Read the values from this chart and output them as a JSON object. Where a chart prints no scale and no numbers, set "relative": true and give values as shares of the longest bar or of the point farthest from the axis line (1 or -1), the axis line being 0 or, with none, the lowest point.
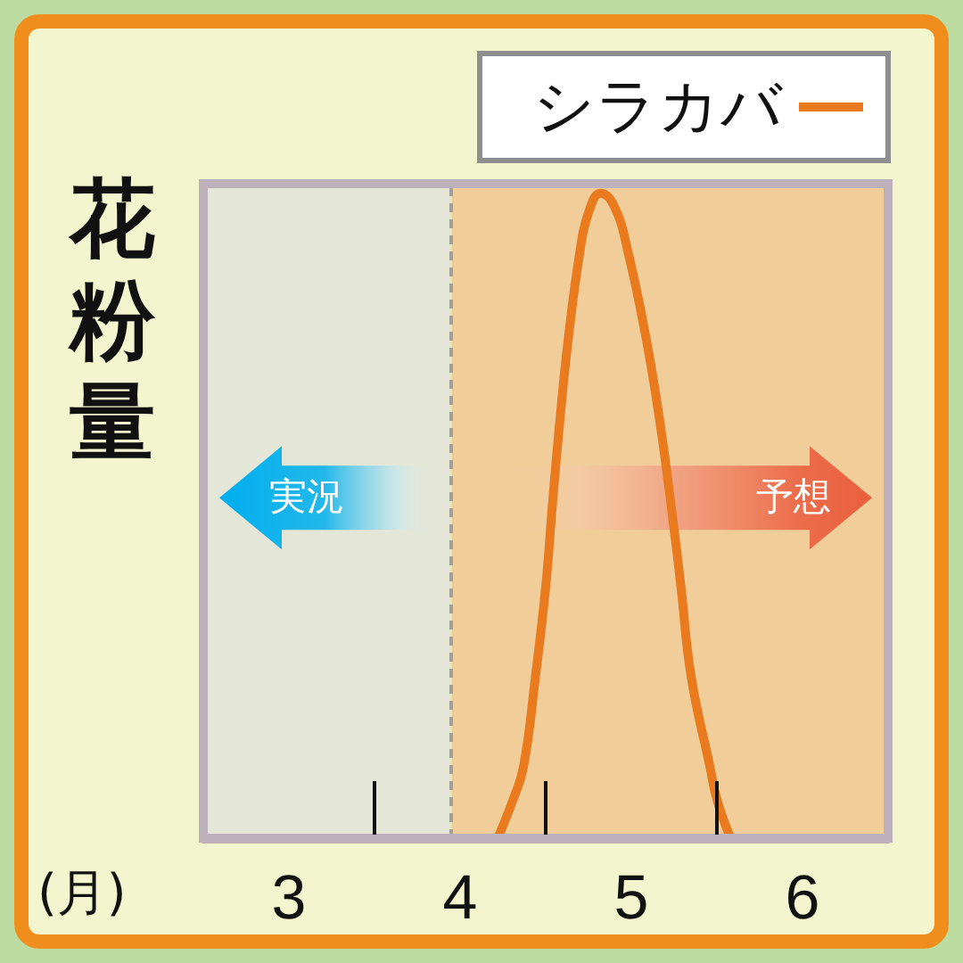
{
  "chart_data": {
    "type": "line",
    "xlabel": "(月)",
    "ylabel": "花粉量",
    "relative": true,
    "xlim": [
      2.5,
      6.5
    ],
    "xticks": [
      3,
      4,
      5,
      6
    ],
    "x": [
      4.22,
      4.31,
      4.37,
      4.44,
      4.5,
      4.54,
      4.58,
      4.63,
      4.7,
      4.75,
      4.82,
      4.9,
      4.98,
      5.09,
      5.17,
      5.24,
      5.29,
      5.35,
      5.46,
      5.5,
      5.58
    ],
    "series": [
      {
        "name": "シラカバ",
        "color": "#e97a1e",
        "values": [
          0,
          0.06,
          0.11,
          0.25,
          0.39,
          0.52,
          0.64,
          0.77,
          0.91,
          0.97,
          1,
          0.98,
          0.91,
          0.77,
          0.64,
          0.5,
          0.39,
          0.25,
          0.11,
          0.06,
          0
        ]
      }
    ],
    "bands": [
      {
        "axis": "x",
        "from": 2.5,
        "to": 3.95,
        "label": "実況",
        "color": "#e4e6d8"
      },
      {
        "axis": "x",
        "from": 3.95,
        "to": 6.5,
        "label": "予想",
        "color": "#f0cd99"
      }
    ],
    "ref_lines": [
      {
        "axis": "x",
        "value": 3.95,
        "color": "#a09f99",
        "line_style": "dashed"
      }
    ],
    "legend": "top right",
    "marker": "none"
  }
}
